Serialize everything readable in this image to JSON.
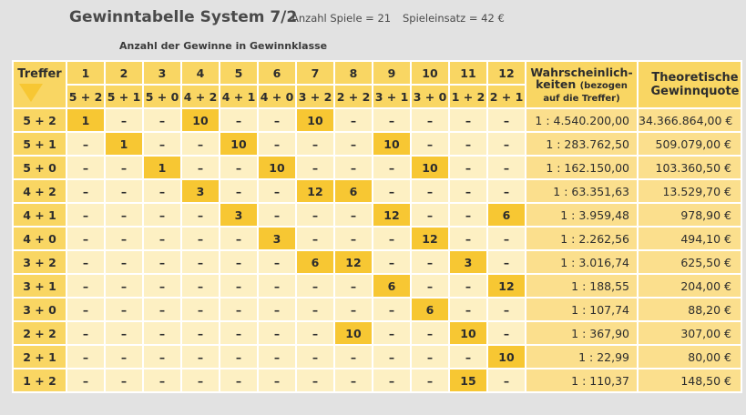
{
  "header": {
    "title": "Gewinntabelle System 7/2",
    "games": "Anzahl Spiele = 21",
    "stake": "Spieleinsatz = 42 €",
    "subtitle": "Anzahl der Gewinne in Gewinnklasse"
  },
  "table": {
    "treffer_label": "Treffer",
    "class_numbers": [
      "1",
      "2",
      "3",
      "4",
      "5",
      "6",
      "7",
      "8",
      "9",
      "10",
      "11",
      "12"
    ],
    "class_names": [
      "5 + 2",
      "5 + 1",
      "5 + 0",
      "4 + 2",
      "4 + 1",
      "4 + 0",
      "3 + 2",
      "2 + 2",
      "3 + 1",
      "3 + 0",
      "1 + 2",
      "2 + 1"
    ],
    "prob_header_line1": "Wahrscheinlich-",
    "prob_header_line2": "keiten",
    "prob_header_note1": "(bezogen",
    "prob_header_note2": "auf die Treffer)",
    "quote_header_line1": "Theoretische",
    "quote_header_line2": "Gewinnquote",
    "rows": [
      {
        "label": "5 + 2",
        "cells": [
          "1",
          "–",
          "–",
          "10",
          "–",
          "–",
          "10",
          "–",
          "–",
          "–",
          "–",
          "–"
        ],
        "prob": "1 : 4.540.200,00",
        "quote": "34.366.864,00 €"
      },
      {
        "label": "5 + 1",
        "cells": [
          "–",
          "1",
          "–",
          "–",
          "10",
          "–",
          "–",
          "–",
          "10",
          "–",
          "–",
          "–"
        ],
        "prob": "1 : 283.762,50",
        "quote": "509.079,00 €"
      },
      {
        "label": "5 + 0",
        "cells": [
          "–",
          "–",
          "1",
          "–",
          "–",
          "10",
          "–",
          "–",
          "–",
          "10",
          "–",
          "–"
        ],
        "prob": "1 : 162.150,00",
        "quote": "103.360,50 €"
      },
      {
        "label": "4 + 2",
        "cells": [
          "–",
          "–",
          "–",
          "3",
          "–",
          "–",
          "12",
          "6",
          "–",
          "–",
          "–",
          "–"
        ],
        "prob": "1 : 63.351,63",
        "quote": "13.529,70 €"
      },
      {
        "label": "4 + 1",
        "cells": [
          "–",
          "–",
          "–",
          "–",
          "3",
          "–",
          "–",
          "–",
          "12",
          "–",
          "–",
          "6"
        ],
        "prob": "1 : 3.959,48",
        "quote": "978,90 €"
      },
      {
        "label": "4 + 0",
        "cells": [
          "–",
          "–",
          "–",
          "–",
          "–",
          "3",
          "–",
          "–",
          "–",
          "12",
          "–",
          "–"
        ],
        "prob": "1 : 2.262,56",
        "quote": "494,10 €"
      },
      {
        "label": "3 + 2",
        "cells": [
          "–",
          "–",
          "–",
          "–",
          "–",
          "–",
          "6",
          "12",
          "–",
          "–",
          "3",
          "–"
        ],
        "prob": "1 : 3.016,74",
        "quote": "625,50 €"
      },
      {
        "label": "3 + 1",
        "cells": [
          "–",
          "–",
          "–",
          "–",
          "–",
          "–",
          "–",
          "–",
          "6",
          "–",
          "–",
          "12"
        ],
        "prob": "1 : 188,55",
        "quote": "204,00 €"
      },
      {
        "label": "3 + 0",
        "cells": [
          "–",
          "–",
          "–",
          "–",
          "–",
          "–",
          "–",
          "–",
          "–",
          "6",
          "–",
          "–"
        ],
        "prob": "1 : 107,74",
        "quote": "88,20 €"
      },
      {
        "label": "2 + 2",
        "cells": [
          "–",
          "–",
          "–",
          "–",
          "–",
          "–",
          "–",
          "10",
          "–",
          "–",
          "10",
          "–"
        ],
        "prob": "1 : 367,90",
        "quote": "307,00 €"
      },
      {
        "label": "2 + 1",
        "cells": [
          "–",
          "–",
          "–",
          "–",
          "–",
          "–",
          "–",
          "–",
          "–",
          "–",
          "–",
          "10"
        ],
        "prob": "1 : 22,99",
        "quote": "80,00 €"
      },
      {
        "label": "1 + 2",
        "cells": [
          "–",
          "–",
          "–",
          "–",
          "–",
          "–",
          "–",
          "–",
          "–",
          "–",
          "15",
          "–"
        ],
        "prob": "1 : 110,37",
        "quote": "148,50 €"
      }
    ]
  },
  "colors": {
    "background": "#e2e2e2",
    "header_yellow": "#f9d663",
    "highlight_yellow": "#f7c733",
    "cell_light": "#fdf0c3",
    "column_mid": "#fbdf8d"
  }
}
